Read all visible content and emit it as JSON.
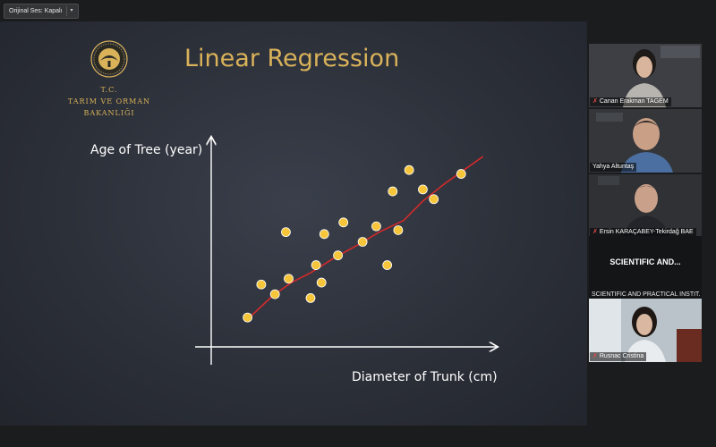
{
  "topbar": {
    "audio_button_label": "Orijinal Ses: Kapalı"
  },
  "slide": {
    "title": "Linear Regression",
    "ministry_line1": "T.C.",
    "ministry_line2": "TARIM VE ORMAN BAKANLIĞI",
    "colors": {
      "gold": "#d9b25a",
      "points": "#f6c53a",
      "line": "#d42a2a",
      "axes": "#ffffff"
    }
  },
  "chart_data": {
    "type": "scatter",
    "xlabel": "Diameter of Trunk (cm)",
    "ylabel": "Age of Tree (year)",
    "x_ticks_shown": false,
    "y_ticks_shown": false,
    "grid": false,
    "legend": "none",
    "xlim": [
      0,
      100
    ],
    "ylim": [
      0,
      100
    ],
    "points": [
      {
        "x": 10,
        "y": 11
      },
      {
        "x": 15,
        "y": 28
      },
      {
        "x": 20,
        "y": 23
      },
      {
        "x": 25,
        "y": 31
      },
      {
        "x": 24,
        "y": 55
      },
      {
        "x": 33,
        "y": 21
      },
      {
        "x": 35,
        "y": 38
      },
      {
        "x": 37,
        "y": 29
      },
      {
        "x": 38,
        "y": 54
      },
      {
        "x": 43,
        "y": 43
      },
      {
        "x": 45,
        "y": 60
      },
      {
        "x": 52,
        "y": 50
      },
      {
        "x": 57,
        "y": 58
      },
      {
        "x": 61,
        "y": 38
      },
      {
        "x": 63,
        "y": 76
      },
      {
        "x": 65,
        "y": 56
      },
      {
        "x": 69,
        "y": 87
      },
      {
        "x": 74,
        "y": 77
      },
      {
        "x": 78,
        "y": 72
      },
      {
        "x": 88,
        "y": 85
      }
    ],
    "trend_line": [
      {
        "x": 9,
        "y": 9
      },
      {
        "x": 13,
        "y": 14
      },
      {
        "x": 19,
        "y": 22
      },
      {
        "x": 26,
        "y": 29
      },
      {
        "x": 33,
        "y": 34
      },
      {
        "x": 42,
        "y": 42
      },
      {
        "x": 51,
        "y": 49
      },
      {
        "x": 58,
        "y": 55
      },
      {
        "x": 67,
        "y": 61
      },
      {
        "x": 74,
        "y": 71
      },
      {
        "x": 82,
        "y": 80
      },
      {
        "x": 89,
        "y": 87
      },
      {
        "x": 96,
        "y": 94
      }
    ]
  },
  "participants": [
    {
      "name": "Canan Erakman TAGEM",
      "muted": true,
      "video": true,
      "active": false
    },
    {
      "name": "Yahya Altuntaş",
      "muted": false,
      "video": true,
      "active": true
    },
    {
      "name": "Ersin KARAÇABEY-Tekirdağ BAE",
      "muted": true,
      "video": true,
      "active": false
    },
    {
      "name": "SCIENTIFIC AND PRACTICAL INSTIT...",
      "display": "SCIENTIFIC AND...",
      "muted": false,
      "video": false,
      "active": false
    },
    {
      "name": "Rusnac Cristina",
      "muted": true,
      "video": true,
      "active": false
    }
  ]
}
